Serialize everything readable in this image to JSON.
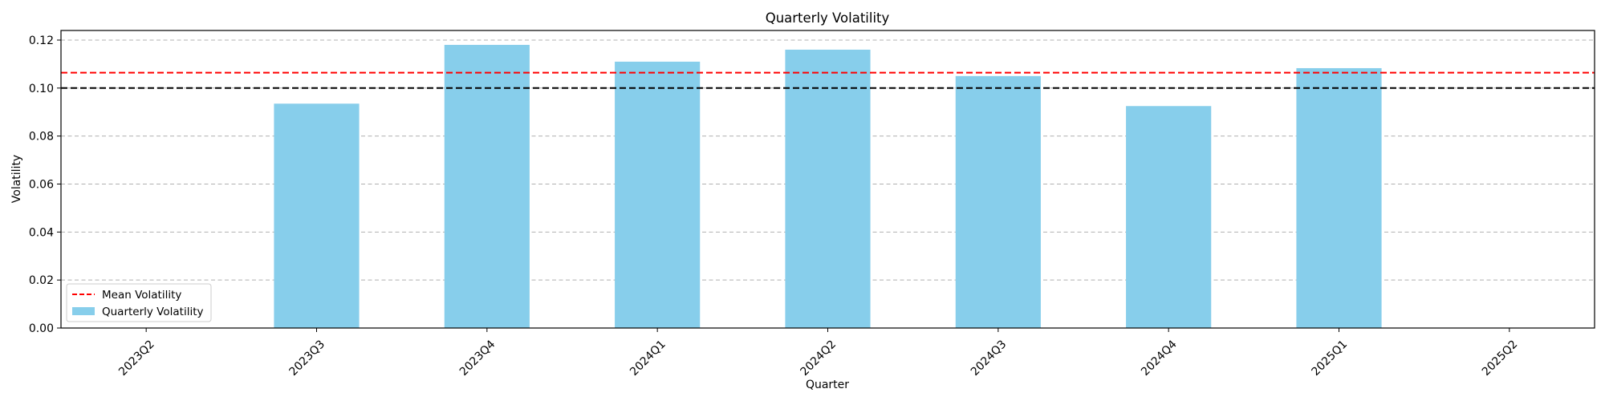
{
  "chart_data": {
    "type": "bar",
    "title": "Quarterly Volatility",
    "xlabel": "Quarter",
    "ylabel": "Volatility",
    "categories": [
      "2023Q2",
      "2023Q3",
      "2023Q4",
      "2024Q1",
      "2024Q2",
      "2024Q3",
      "2024Q4",
      "2025Q1",
      "2025Q2"
    ],
    "series": [
      {
        "name": "Quarterly Volatility",
        "color": "#87ceeb",
        "values": [
          null,
          0.0935,
          0.118,
          0.111,
          0.116,
          0.105,
          0.0925,
          0.1083,
          null
        ]
      }
    ],
    "reference_lines": [
      {
        "name": "Mean Volatility",
        "value": 0.1064,
        "color": "#ff0000",
        "style": "dashed",
        "in_legend": true
      },
      {
        "value": 0.1,
        "color": "#000000",
        "style": "dashed",
        "in_legend": false
      }
    ],
    "ylim": [
      0,
      0.124
    ],
    "yticks": [
      "0.00",
      "0.02",
      "0.04",
      "0.06",
      "0.08",
      "0.10",
      "0.12"
    ],
    "ytick_values": [
      0,
      0.02,
      0.04,
      0.06,
      0.08,
      0.1,
      0.12
    ],
    "xtick_rotation": 45,
    "grid": {
      "y": true,
      "x": false,
      "style": "dashed"
    },
    "legend": {
      "placement": "lower-left",
      "entries": [
        {
          "label": "Mean Volatility",
          "kind": "line",
          "color": "#ff0000"
        },
        {
          "label": "Quarterly Volatility",
          "kind": "patch",
          "color": "#87ceeb"
        }
      ]
    }
  }
}
